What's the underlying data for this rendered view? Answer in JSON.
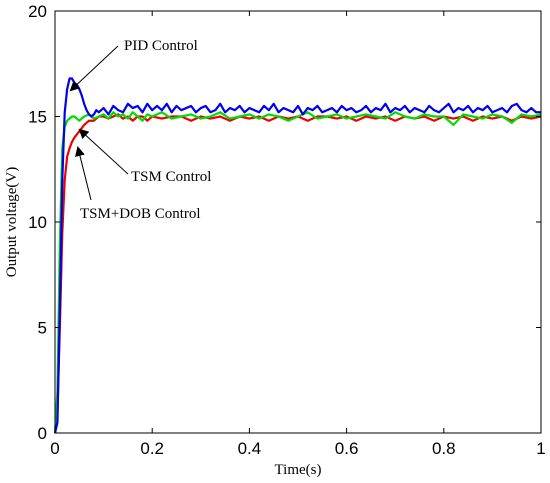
{
  "chart_data": {
    "type": "line",
    "title": "",
    "xlabel": "Time(s)",
    "ylabel": "Output voltage(V)",
    "xlim": [
      0,
      1
    ],
    "ylim": [
      0,
      20
    ],
    "grid": false,
    "xticks": [
      "0",
      "0.2",
      "0.4",
      "0.6",
      "0.8",
      "1"
    ],
    "yticks": [
      "0",
      "5",
      "10",
      "15",
      "20"
    ],
    "series": [
      {
        "name": "PID Control",
        "color": "#0000ee",
        "x": [
          0,
          0.005,
          0.01,
          0.015,
          0.02,
          0.025,
          0.03,
          0.035,
          0.04,
          0.045,
          0.05,
          0.055,
          0.06,
          0.065,
          0.07,
          0.075,
          0.08,
          0.085,
          0.09,
          0.1,
          0.11,
          0.12,
          0.13,
          0.14,
          0.15,
          0.16,
          0.17,
          0.18,
          0.19,
          0.2,
          0.21,
          0.22,
          0.23,
          0.24,
          0.25,
          0.26,
          0.27,
          0.28,
          0.29,
          0.3,
          0.31,
          0.32,
          0.33,
          0.34,
          0.35,
          0.36,
          0.37,
          0.38,
          0.39,
          0.4,
          0.41,
          0.42,
          0.43,
          0.44,
          0.45,
          0.46,
          0.47,
          0.48,
          0.49,
          0.5,
          0.51,
          0.52,
          0.53,
          0.54,
          0.55,
          0.56,
          0.57,
          0.58,
          0.59,
          0.6,
          0.61,
          0.62,
          0.63,
          0.64,
          0.65,
          0.66,
          0.67,
          0.68,
          0.69,
          0.7,
          0.71,
          0.72,
          0.73,
          0.74,
          0.75,
          0.76,
          0.77,
          0.78,
          0.79,
          0.8,
          0.81,
          0.82,
          0.83,
          0.84,
          0.85,
          0.86,
          0.87,
          0.88,
          0.89,
          0.9,
          0.91,
          0.92,
          0.93,
          0.94,
          0.95,
          0.96,
          0.97,
          0.98,
          0.99,
          1.0
        ],
        "values": [
          0,
          0.5,
          6,
          12,
          15.2,
          16.3,
          16.8,
          16.8,
          16.6,
          16.5,
          16.3,
          16.0,
          15.6,
          15.3,
          15.1,
          15.0,
          15.1,
          15.3,
          15.2,
          15.4,
          15.1,
          15.5,
          15.3,
          15.2,
          15.6,
          15.4,
          15.5,
          15.2,
          15.6,
          15.3,
          15.5,
          15.3,
          15.6,
          15.2,
          15.5,
          15.3,
          15.4,
          15.5,
          15.2,
          15.4,
          15.5,
          15.2,
          15.3,
          15.6,
          15.2,
          15.4,
          15.3,
          15.5,
          15.2,
          15.4,
          15.3,
          15.2,
          15.5,
          15.3,
          15.6,
          15.2,
          15.4,
          15.3,
          15.2,
          15.5,
          15.1,
          15.4,
          15.3,
          15.5,
          15.2,
          15.3,
          15.4,
          15.2,
          15.5,
          15.3,
          15.4,
          15.2,
          15.3,
          15.5,
          15.2,
          15.4,
          15.3,
          15.6,
          15.2,
          15.4,
          15.3,
          15.5,
          15.2,
          15.4,
          15.3,
          15.2,
          15.5,
          15.3,
          15.2,
          15.4,
          15.6,
          15.2,
          15.4,
          15.3,
          15.5,
          15.2,
          15.4,
          15.3,
          15.5,
          15.2,
          15.3,
          15.4,
          15.2,
          15.5,
          15.6,
          15.3,
          15.2,
          15.4,
          15.2,
          15.2
        ]
      },
      {
        "name": "TSM Control",
        "color": "#00dd00",
        "x": [
          0,
          0.005,
          0.01,
          0.015,
          0.02,
          0.025,
          0.03,
          0.035,
          0.04,
          0.05,
          0.06,
          0.07,
          0.08,
          0.09,
          0.1,
          0.11,
          0.12,
          0.13,
          0.14,
          0.15,
          0.16,
          0.17,
          0.18,
          0.19,
          0.2,
          0.22,
          0.24,
          0.26,
          0.28,
          0.3,
          0.32,
          0.34,
          0.36,
          0.38,
          0.4,
          0.42,
          0.44,
          0.46,
          0.48,
          0.5,
          0.52,
          0.54,
          0.56,
          0.58,
          0.6,
          0.62,
          0.64,
          0.66,
          0.68,
          0.7,
          0.72,
          0.74,
          0.76,
          0.78,
          0.8,
          0.82,
          0.84,
          0.86,
          0.88,
          0.9,
          0.92,
          0.94,
          0.96,
          0.98,
          1.0
        ],
        "values": [
          0,
          2,
          9,
          13.5,
          14.5,
          14.8,
          14.9,
          15.0,
          15.0,
          14.8,
          15.0,
          15.1,
          14.9,
          15.0,
          15.1,
          14.9,
          15.2,
          15.0,
          15.1,
          14.9,
          15.2,
          15.0,
          14.8,
          15.1,
          15.0,
          15.2,
          14.9,
          15.0,
          15.1,
          14.9,
          15.0,
          15.2,
          14.9,
          15.0,
          15.1,
          14.9,
          15.1,
          15.0,
          14.8,
          15.0,
          15.2,
          14.9,
          15.0,
          15.1,
          14.9,
          15.0,
          15.1,
          15.0,
          14.9,
          15.2,
          15.0,
          14.9,
          15.1,
          15.0,
          15.0,
          14.6,
          15.1,
          15.0,
          14.9,
          15.1,
          15.0,
          14.7,
          15.1,
          15.0,
          15.1
        ]
      },
      {
        "name": "TSM+DOB Control",
        "color": "#ee0000",
        "x": [
          0,
          0.005,
          0.01,
          0.015,
          0.02,
          0.025,
          0.03,
          0.035,
          0.04,
          0.05,
          0.06,
          0.07,
          0.08,
          0.09,
          0.1,
          0.11,
          0.12,
          0.13,
          0.14,
          0.15,
          0.16,
          0.17,
          0.18,
          0.19,
          0.2,
          0.22,
          0.24,
          0.26,
          0.28,
          0.3,
          0.32,
          0.34,
          0.36,
          0.38,
          0.4,
          0.42,
          0.44,
          0.46,
          0.48,
          0.5,
          0.52,
          0.54,
          0.56,
          0.58,
          0.6,
          0.62,
          0.64,
          0.66,
          0.68,
          0.7,
          0.72,
          0.74,
          0.76,
          0.78,
          0.8,
          0.82,
          0.84,
          0.86,
          0.88,
          0.9,
          0.92,
          0.94,
          0.96,
          0.98,
          1.0
        ],
        "values": [
          0,
          1,
          5,
          9.5,
          12,
          13.1,
          13.5,
          13.8,
          14.0,
          14.3,
          14.6,
          14.8,
          14.8,
          15.0,
          15.0,
          14.9,
          15.0,
          15.1,
          14.9,
          15.0,
          14.8,
          15.0,
          15.0,
          14.8,
          15.0,
          14.9,
          15.0,
          15.0,
          14.8,
          15.0,
          14.9,
          15.0,
          14.8,
          15.0,
          14.9,
          15.0,
          14.8,
          15.0,
          14.9,
          15.0,
          14.8,
          15.0,
          15.0,
          14.9,
          15.0,
          14.8,
          15.0,
          14.9,
          15.0,
          14.8,
          15.0,
          14.9,
          15.0,
          14.8,
          15.0,
          14.9,
          15.0,
          14.8,
          15.0,
          14.9,
          15.0,
          14.8,
          15.0,
          14.9,
          15.0
        ]
      }
    ],
    "annotations": [
      {
        "text": "PID  Control",
        "series": "PID Control"
      },
      {
        "text": "TSM Control",
        "series": "TSM Control"
      },
      {
        "text": "TSM+DOB Control",
        "series": "TSM+DOB Control"
      }
    ]
  }
}
